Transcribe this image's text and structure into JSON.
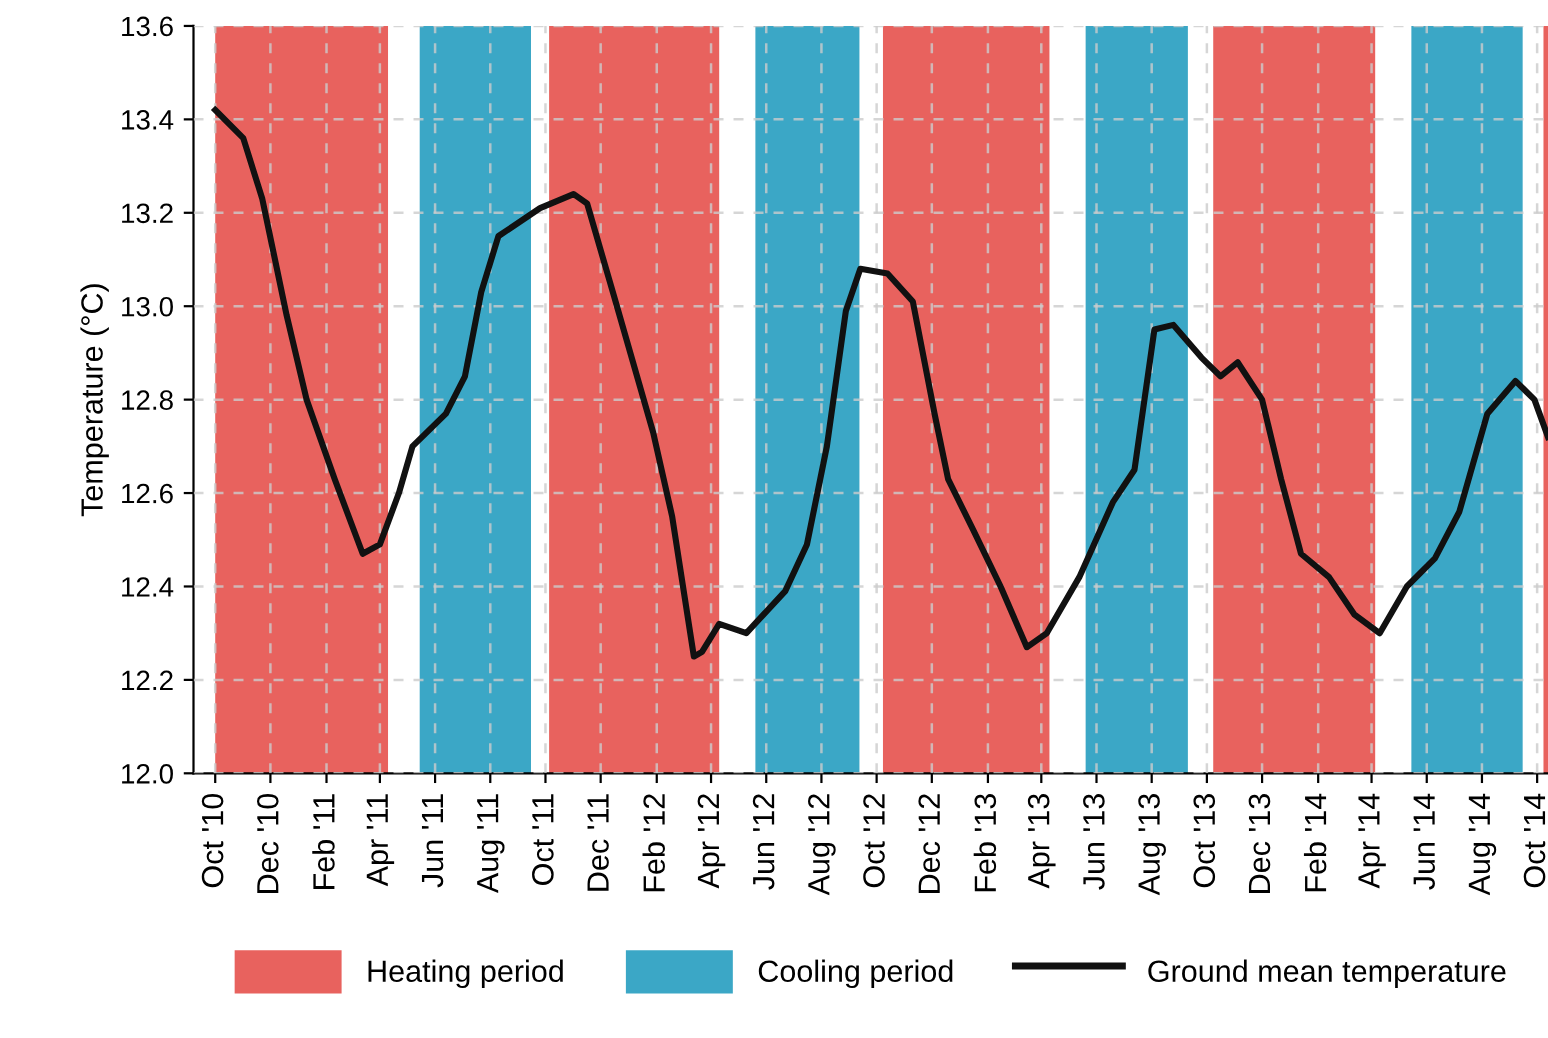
{
  "chart_data": {
    "type": "line",
    "ylabel": "Temperature (°C)",
    "x": [
      "2010-10-01",
      "2010-11-01",
      "2010-11-22",
      "2010-12-19",
      "2011-01-10",
      "2011-02-10",
      "2011-03-13",
      "2011-04-01",
      "2011-04-22",
      "2011-05-07",
      "2011-06-13",
      "2011-07-04",
      "2011-07-22",
      "2011-08-10",
      "2011-09-25",
      "2011-11-01",
      "2011-11-16",
      "2011-12-16",
      "2012-01-28",
      "2012-02-18",
      "2012-03-13",
      "2012-03-22",
      "2012-04-10",
      "2012-05-10",
      "2012-06-22",
      "2012-07-16",
      "2012-08-07",
      "2012-08-28",
      "2012-09-13",
      "2012-10-13",
      "2012-11-10",
      "2012-12-04",
      "2012-12-19",
      "2013-01-16",
      "2013-02-15",
      "2013-03-16",
      "2013-04-07",
      "2013-05-13",
      "2013-06-19",
      "2013-07-13",
      "2013-08-04",
      "2013-08-25",
      "2013-09-25",
      "2013-10-16",
      "2013-11-04",
      "2013-12-01",
      "2013-12-22",
      "2014-01-13",
      "2014-02-13",
      "2014-03-13",
      "2014-04-10",
      "2014-05-10",
      "2014-06-10",
      "2014-07-07",
      "2014-08-07",
      "2014-09-07",
      "2014-09-28",
      "2014-10-13"
    ],
    "series": [
      {
        "name": "Ground mean temperature",
        "color": "#111111",
        "values": [
          13.42,
          13.36,
          13.23,
          12.98,
          12.8,
          12.63,
          12.47,
          12.49,
          12.6,
          12.7,
          12.77,
          12.85,
          13.03,
          13.15,
          13.21,
          13.24,
          13.22,
          13.02,
          12.73,
          12.55,
          12.25,
          12.26,
          12.32,
          12.3,
          12.39,
          12.49,
          12.7,
          12.99,
          13.08,
          13.07,
          13.01,
          12.77,
          12.63,
          12.52,
          12.4,
          12.27,
          12.3,
          12.42,
          12.58,
          12.65,
          12.95,
          12.96,
          12.89,
          12.85,
          12.88,
          12.8,
          12.63,
          12.47,
          12.42,
          12.34,
          12.3,
          12.4,
          12.46,
          12.56,
          12.77,
          12.84,
          12.8,
          12.72
        ]
      }
    ],
    "bands": [
      {
        "axis": "x",
        "from": "2010-10-01",
        "to": "2011-04-10",
        "label": "Heating period",
        "color": "#e8625e"
      },
      {
        "axis": "x",
        "from": "2011-05-15",
        "to": "2011-09-15",
        "label": "Cooling period",
        "color": "#3ba7c6"
      },
      {
        "axis": "x",
        "from": "2011-10-05",
        "to": "2012-04-10",
        "color": "#e8625e"
      },
      {
        "axis": "x",
        "from": "2012-05-20",
        "to": "2012-09-12",
        "color": "#3ba7c6"
      },
      {
        "axis": "x",
        "from": "2012-10-08",
        "to": "2013-04-10",
        "color": "#e8625e"
      },
      {
        "axis": "x",
        "from": "2013-05-20",
        "to": "2013-09-10",
        "color": "#3ba7c6"
      },
      {
        "axis": "x",
        "from": "2013-10-08",
        "to": "2014-04-05",
        "color": "#e8625e"
      },
      {
        "axis": "x",
        "from": "2014-05-15",
        "to": "2014-09-15",
        "color": "#3ba7c6"
      },
      {
        "axis": "x",
        "from": "2014-10-08",
        "to": "2014-10-13",
        "color": "#e8625e"
      }
    ],
    "xlim": [
      "2010-09-07",
      "2014-10-13"
    ],
    "xticks": [
      {
        "value": "2010-10-01",
        "label": "Oct '10"
      },
      {
        "value": "2010-12-01",
        "label": "Dec '10"
      },
      {
        "value": "2011-02-01",
        "label": "Feb '11"
      },
      {
        "value": "2011-04-01",
        "label": "Apr '11"
      },
      {
        "value": "2011-06-01",
        "label": "Jun '11"
      },
      {
        "value": "2011-08-01",
        "label": "Aug '11"
      },
      {
        "value": "2011-10-01",
        "label": "Oct '11"
      },
      {
        "value": "2011-12-01",
        "label": "Dec '11"
      },
      {
        "value": "2012-02-01",
        "label": "Feb '12"
      },
      {
        "value": "2012-04-01",
        "label": "Apr '12"
      },
      {
        "value": "2012-06-01",
        "label": "Jun '12"
      },
      {
        "value": "2012-08-01",
        "label": "Aug '12"
      },
      {
        "value": "2012-10-01",
        "label": "Oct '12"
      },
      {
        "value": "2012-12-01",
        "label": "Dec '12"
      },
      {
        "value": "2013-02-01",
        "label": "Feb '13"
      },
      {
        "value": "2013-04-01",
        "label": "Apr '13"
      },
      {
        "value": "2013-06-01",
        "label": "Jun '13"
      },
      {
        "value": "2013-08-01",
        "label": "Aug '13"
      },
      {
        "value": "2013-10-01",
        "label": "Oct '13"
      },
      {
        "value": "2013-12-01",
        "label": "Dec '13"
      },
      {
        "value": "2014-02-01",
        "label": "Feb '14"
      },
      {
        "value": "2014-04-01",
        "label": "Apr '14"
      },
      {
        "value": "2014-06-01",
        "label": "Jun '14"
      },
      {
        "value": "2014-08-01",
        "label": "Aug '14"
      },
      {
        "value": "2014-10-01",
        "label": "Oct '14"
      }
    ],
    "ylim": [
      12.0,
      13.6
    ],
    "yticks": [
      {
        "value": 12.0,
        "label": "12.0"
      },
      {
        "value": 12.2,
        "label": "12.2"
      },
      {
        "value": 12.4,
        "label": "12.4"
      },
      {
        "value": 12.6,
        "label": "12.6"
      },
      {
        "value": 12.8,
        "label": "12.8"
      },
      {
        "value": 13.0,
        "label": "13.0"
      },
      {
        "value": 13.2,
        "label": "13.2"
      },
      {
        "value": 13.4,
        "label": "13.4"
      },
      {
        "value": 13.6,
        "label": "13.6"
      }
    ],
    "grid": true,
    "legend": "bottom",
    "marker": "none",
    "line_style": "solid"
  }
}
